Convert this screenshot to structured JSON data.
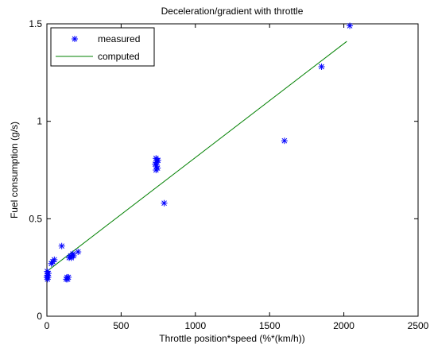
{
  "chart_data": {
    "type": "scatter",
    "title": "Deceleration/gradient with throttle",
    "xlabel": "Throttle position*speed (%*(km/h))",
    "ylabel": "Fuel consumption (g/s)",
    "xlim": [
      0,
      2500
    ],
    "ylim": [
      0,
      1.5
    ],
    "xticks": [
      0,
      500,
      1000,
      1500,
      2000,
      2500
    ],
    "xtick_labels": [
      "0",
      "500",
      "1000",
      "1500",
      "2000",
      "2500"
    ],
    "yticks": [
      0,
      0.5,
      1,
      1.5
    ],
    "ytick_labels": [
      "0",
      "0.5",
      "1",
      "1.5"
    ],
    "grid": false,
    "legend_position": "top-left",
    "series": [
      {
        "name": "measured",
        "kind": "scatter",
        "marker": "asterisk",
        "color": "#0000ff",
        "x": [
          0,
          3,
          5,
          2,
          4,
          8,
          6,
          10,
          2,
          4,
          30,
          40,
          50,
          100,
          130,
          135,
          140,
          145,
          150,
          160,
          165,
          170,
          175,
          180,
          210,
          735,
          740,
          730,
          738,
          742,
          745,
          748,
          735,
          790,
          1600,
          1850,
          2040
        ],
        "y": [
          0.2,
          0.21,
          0.22,
          0.23,
          0.19,
          0.2,
          0.21,
          0.22,
          0.2,
          0.21,
          0.27,
          0.28,
          0.29,
          0.36,
          0.19,
          0.2,
          0.19,
          0.2,
          0.3,
          0.31,
          0.3,
          0.31,
          0.32,
          0.31,
          0.33,
          0.81,
          0.8,
          0.78,
          0.77,
          0.79,
          0.76,
          0.8,
          0.75,
          0.58,
          0.9,
          1.28,
          1.49
        ]
      },
      {
        "name": "computed",
        "kind": "line",
        "color": "#008000",
        "x": [
          0,
          2020
        ],
        "y": [
          0.23,
          1.41
        ]
      }
    ]
  }
}
